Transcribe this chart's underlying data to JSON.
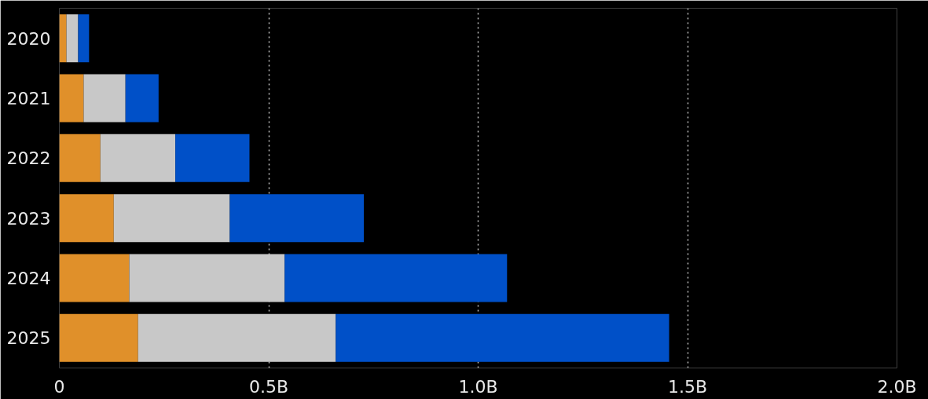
{
  "chart_data": {
    "type": "bar",
    "orientation": "horizontal",
    "stacked": true,
    "categories": [
      "2020",
      "2021",
      "2022",
      "2023",
      "2024",
      "2025"
    ],
    "series": [
      {
        "color": "#e0902a",
        "values": [
          0.017,
          0.058,
          0.098,
          0.13,
          0.167,
          0.188
        ]
      },
      {
        "color": "#c8c8c8",
        "values": [
          0.028,
          0.1,
          0.179,
          0.277,
          0.371,
          0.472
        ]
      },
      {
        "color": "#0050c8",
        "values": [
          0.026,
          0.079,
          0.177,
          0.32,
          0.531,
          0.796
        ]
      }
    ],
    "xlim": [
      0,
      2.0
    ],
    "xticks": [
      0,
      {
        "value": 0.5,
        "label": "0.5B"
      },
      {
        "value": 1.0,
        "label": "1.0B"
      },
      {
        "value": 1.5,
        "label": "1.5B"
      },
      {
        "value": 2.0,
        "label": "2.0B"
      }
    ],
    "grid": "x"
  }
}
